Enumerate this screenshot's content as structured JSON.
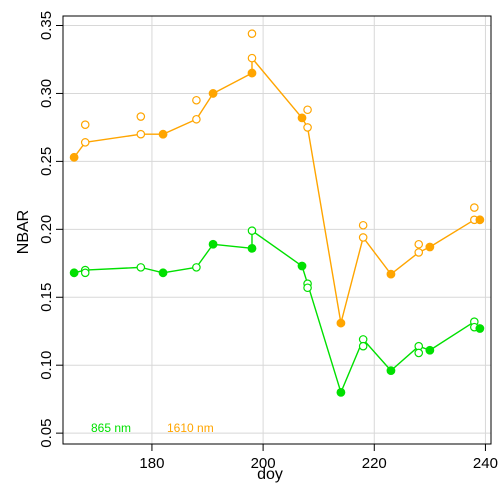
{
  "chart_data": {
    "type": "scatter",
    "title": "",
    "xlabel": "doy",
    "ylabel": "NBAR",
    "xlim": [
      164,
      241
    ],
    "ylim": [
      0.042,
      0.357
    ],
    "xticks": [
      180,
      200,
      220,
      240
    ],
    "yticks": [
      0.05,
      0.1,
      0.15,
      0.2,
      0.25,
      0.3,
      0.35
    ],
    "ytick_labels": [
      "0.05",
      "0.10",
      "0.15",
      "0.20",
      "0.25",
      "0.30",
      "0.35"
    ],
    "grid": true,
    "legend_position": "bottom-left",
    "series": [
      {
        "name": "865 nm",
        "color": "#00e000",
        "line": [
          [
            166,
            0.168
          ],
          [
            168,
            0.17
          ],
          [
            178,
            0.172
          ],
          [
            182,
            0.168
          ],
          [
            188,
            0.172
          ],
          [
            191,
            0.189
          ],
          [
            198,
            0.186
          ],
          [
            198,
            0.199
          ],
          [
            207,
            0.173
          ],
          [
            208,
            0.16
          ],
          [
            214,
            0.08
          ],
          [
            218,
            0.119
          ],
          [
            223,
            0.096
          ],
          [
            228,
            0.114
          ],
          [
            230,
            0.111
          ],
          [
            238,
            0.132
          ],
          [
            239,
            0.127
          ]
        ],
        "filled": [
          [
            166,
            0.168
          ],
          [
            182,
            0.168
          ],
          [
            191,
            0.189
          ],
          [
            198,
            0.186
          ],
          [
            207,
            0.173
          ],
          [
            214,
            0.08
          ],
          [
            223,
            0.096
          ],
          [
            230,
            0.111
          ],
          [
            239,
            0.127
          ]
        ],
        "open": [
          [
            168,
            0.17
          ],
          [
            168,
            0.168
          ],
          [
            178,
            0.172
          ],
          [
            188,
            0.172
          ],
          [
            198,
            0.199
          ],
          [
            208,
            0.16
          ],
          [
            208,
            0.157
          ],
          [
            218,
            0.119
          ],
          [
            218,
            0.114
          ],
          [
            228,
            0.114
          ],
          [
            228,
            0.109
          ],
          [
            238,
            0.132
          ],
          [
            238,
            0.128
          ]
        ]
      },
      {
        "name": "1610 nm",
        "color": "#ffa500",
        "line": [
          [
            166,
            0.253
          ],
          [
            168,
            0.264
          ],
          [
            178,
            0.27
          ],
          [
            182,
            0.27
          ],
          [
            188,
            0.281
          ],
          [
            191,
            0.3
          ],
          [
            198,
            0.315
          ],
          [
            198,
            0.326
          ],
          [
            207,
            0.282
          ],
          [
            208,
            0.275
          ],
          [
            214,
            0.131
          ],
          [
            218,
            0.194
          ],
          [
            223,
            0.167
          ],
          [
            228,
            0.183
          ],
          [
            230,
            0.187
          ],
          [
            238,
            0.207
          ],
          [
            239,
            0.207
          ]
        ],
        "filled": [
          [
            166,
            0.253
          ],
          [
            182,
            0.27
          ],
          [
            191,
            0.3
          ],
          [
            198,
            0.315
          ],
          [
            207,
            0.282
          ],
          [
            214,
            0.131
          ],
          [
            223,
            0.167
          ],
          [
            230,
            0.187
          ],
          [
            239,
            0.207
          ]
        ],
        "open": [
          [
            168,
            0.264
          ],
          [
            168,
            0.277
          ],
          [
            178,
            0.27
          ],
          [
            178,
            0.283
          ],
          [
            188,
            0.281
          ],
          [
            188,
            0.295
          ],
          [
            198,
            0.326
          ],
          [
            198,
            0.344
          ],
          [
            208,
            0.275
          ],
          [
            208,
            0.288
          ],
          [
            218,
            0.194
          ],
          [
            218,
            0.203
          ],
          [
            228,
            0.183
          ],
          [
            228,
            0.189
          ],
          [
            238,
            0.216
          ],
          [
            238,
            0.207
          ]
        ]
      }
    ]
  }
}
